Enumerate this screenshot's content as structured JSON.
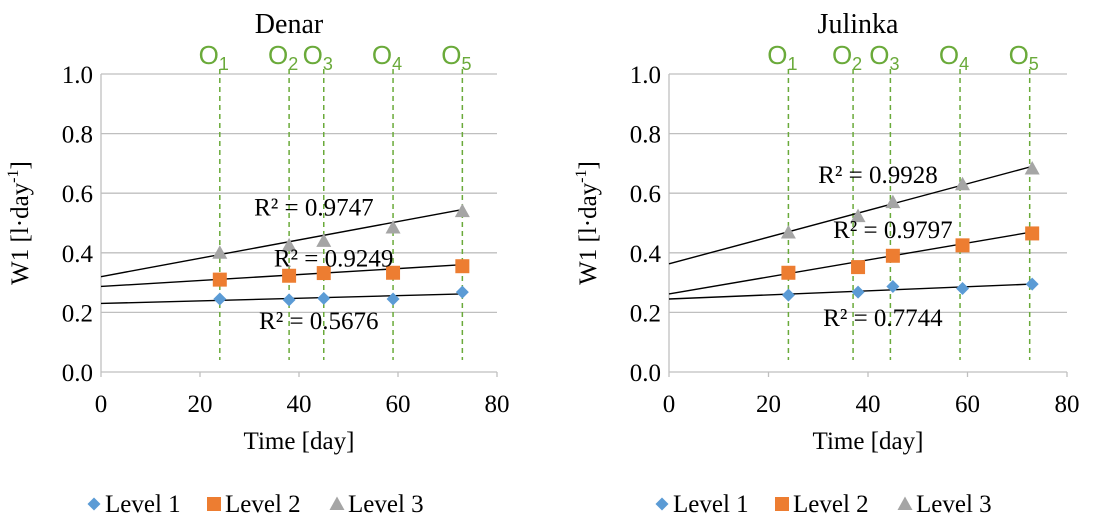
{
  "chart_data": [
    {
      "type": "scatter",
      "title": "Denar",
      "xlabel": "Time [day]",
      "ylabel_main": "W1 [l·day",
      "ylabel_sup": "-1",
      "ylabel_end": "]",
      "xlim": [
        0,
        80
      ],
      "ylim": [
        0,
        1.0
      ],
      "xticks": [
        "0",
        "20",
        "40",
        "60",
        "80"
      ],
      "yticks": [
        "0.0",
        "0.2",
        "0.4",
        "0.6",
        "0.8",
        "1.0"
      ],
      "grid": "horizontal",
      "observations": [
        {
          "main": "O",
          "sub": "1",
          "x": 24
        },
        {
          "main": "O",
          "sub": "2",
          "x": 38
        },
        {
          "main": "O",
          "sub": "3",
          "x": 45
        },
        {
          "main": "O",
          "sub": "4",
          "x": 59
        },
        {
          "main": "O",
          "sub": "5",
          "x": 73
        }
      ],
      "series": [
        {
          "name": "Level 1",
          "marker": "diamond",
          "color": "#5b9bd5",
          "points": [
            [
              24,
              0.245
            ],
            [
              38,
              0.242
            ],
            [
              45,
              0.247
            ],
            [
              59,
              0.245
            ],
            [
              73,
              0.268
            ]
          ],
          "trend": {
            "start": [
              0,
              0.23
            ],
            "end": [
              73,
              0.262
            ]
          },
          "r2": "R² = 0.5676",
          "r2_pos": [
            44,
            0.175
          ]
        },
        {
          "name": "Level 2",
          "marker": "square",
          "color": "#ed7d31",
          "points": [
            [
              24,
              0.31
            ],
            [
              38,
              0.323
            ],
            [
              45,
              0.332
            ],
            [
              59,
              0.333
            ],
            [
              73,
              0.355
            ]
          ],
          "trend": {
            "start": [
              0,
              0.287
            ],
            "end": [
              73,
              0.36
            ]
          },
          "r2": "R² = 0.9249",
          "r2_pos": [
            47,
            0.385
          ]
        },
        {
          "name": "Level 3",
          "marker": "triangle",
          "color": "#a5a5a5",
          "points": [
            [
              24,
              0.4
            ],
            [
              38,
              0.425
            ],
            [
              45,
              0.44
            ],
            [
              59,
              0.485
            ],
            [
              73,
              0.54
            ]
          ],
          "trend": {
            "start": [
              0,
              0.32
            ],
            "end": [
              73,
              0.545
            ]
          },
          "r2": "R² = 0.9747",
          "r2_pos": [
            43,
            0.555
          ]
        }
      ],
      "legend": {
        "position": "bottom",
        "labels": [
          "Level 1",
          "Level 2",
          "Level 3"
        ]
      }
    },
    {
      "type": "scatter",
      "title": "Julinka",
      "xlabel": "Time [day]",
      "ylabel_main": "W1 [l·day",
      "ylabel_sup": "-1",
      "ylabel_end": "]",
      "xlim": [
        0,
        80
      ],
      "ylim": [
        0,
        1.0
      ],
      "xticks": [
        "0",
        "20",
        "40",
        "60",
        "80"
      ],
      "yticks": [
        "0.0",
        "0.2",
        "0.4",
        "0.6",
        "0.8",
        "1.0"
      ],
      "grid": "horizontal",
      "observations": [
        {
          "main": "O",
          "sub": "1",
          "x": 24
        },
        {
          "main": "O",
          "sub": "2",
          "x": 37
        },
        {
          "main": "O",
          "sub": "3",
          "x": 44.5
        },
        {
          "main": "O",
          "sub": "4",
          "x": 58.5
        },
        {
          "main": "O",
          "sub": "5",
          "x": 72.5
        }
      ],
      "series": [
        {
          "name": "Level 1",
          "marker": "diamond",
          "color": "#5b9bd5",
          "points": [
            [
              24,
              0.258
            ],
            [
              38,
              0.268
            ],
            [
              45,
              0.287
            ],
            [
              59,
              0.28
            ],
            [
              73,
              0.295
            ]
          ],
          "trend": {
            "start": [
              0,
              0.245
            ],
            "end": [
              73,
              0.295
            ]
          },
          "r2": "R² = 0.7744",
          "r2_pos": [
            43,
            0.185
          ]
        },
        {
          "name": "Level 2",
          "marker": "square",
          "color": "#ed7d31",
          "points": [
            [
              24,
              0.333
            ],
            [
              38,
              0.352
            ],
            [
              45,
              0.39
            ],
            [
              59,
              0.425
            ],
            [
              73,
              0.465
            ]
          ],
          "trend": {
            "start": [
              0,
              0.262
            ],
            "end": [
              73,
              0.47
            ]
          },
          "r2": "R² = 0.9797",
          "r2_pos": [
            45,
            0.48
          ]
        },
        {
          "name": "Level 3",
          "marker": "triangle",
          "color": "#a5a5a5",
          "points": [
            [
              24,
              0.468
            ],
            [
              38,
              0.523
            ],
            [
              45,
              0.57
            ],
            [
              59,
              0.63
            ],
            [
              73,
              0.683
            ]
          ],
          "trend": {
            "start": [
              0,
              0.363
            ],
            "end": [
              73,
              0.69
            ]
          },
          "r2": "R² = 0.9928",
          "r2_pos": [
            42,
            0.665
          ]
        }
      ],
      "legend": {
        "position": "bottom",
        "labels": [
          "Level 1",
          "Level 2",
          "Level 3"
        ]
      }
    }
  ],
  "colors": {
    "observation_line": "#6aaa3a",
    "grid": "#bfbfbf",
    "trend": "#000000",
    "axis": "#000000"
  }
}
